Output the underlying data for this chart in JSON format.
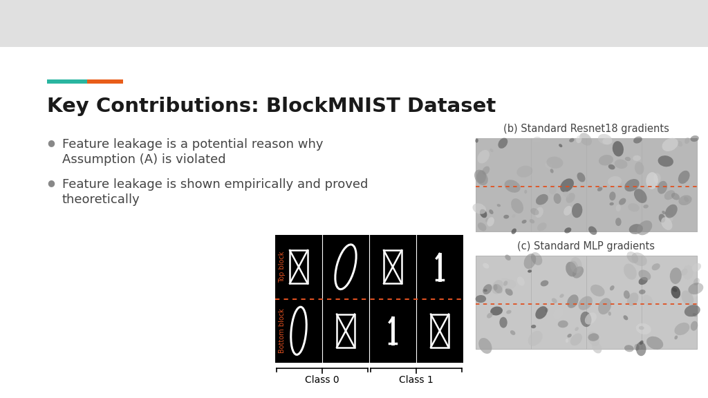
{
  "title": "Key Contributions: BlockMNIST Dataset",
  "bullet1_line1": "Feature leakage is a potential reason why",
  "bullet1_line2": "Assumption (A) is violated",
  "bullet2_line1": "Feature leakage is shown empirically and proved",
  "bullet2_line2": "theoretically",
  "label_resnet": "(b) Standard Resnet18 gradients",
  "label_mlp": "(c) Standard MLP gradients",
  "label_class0": "Class 0",
  "label_class1": "Class 1",
  "label_top_block": "Top block",
  "label_bottom_block": "Bottom block",
  "header_bg": "#e0e0e0",
  "slide_bg": "#ffffff",
  "outer_bg": "#d8d8d8",
  "teal_color": "#2ab5a0",
  "orange_color": "#e85d1a",
  "title_color": "#1a1a1a",
  "text_color": "#444444",
  "bullet_color": "#555555",
  "red_dashed": "#e05020"
}
